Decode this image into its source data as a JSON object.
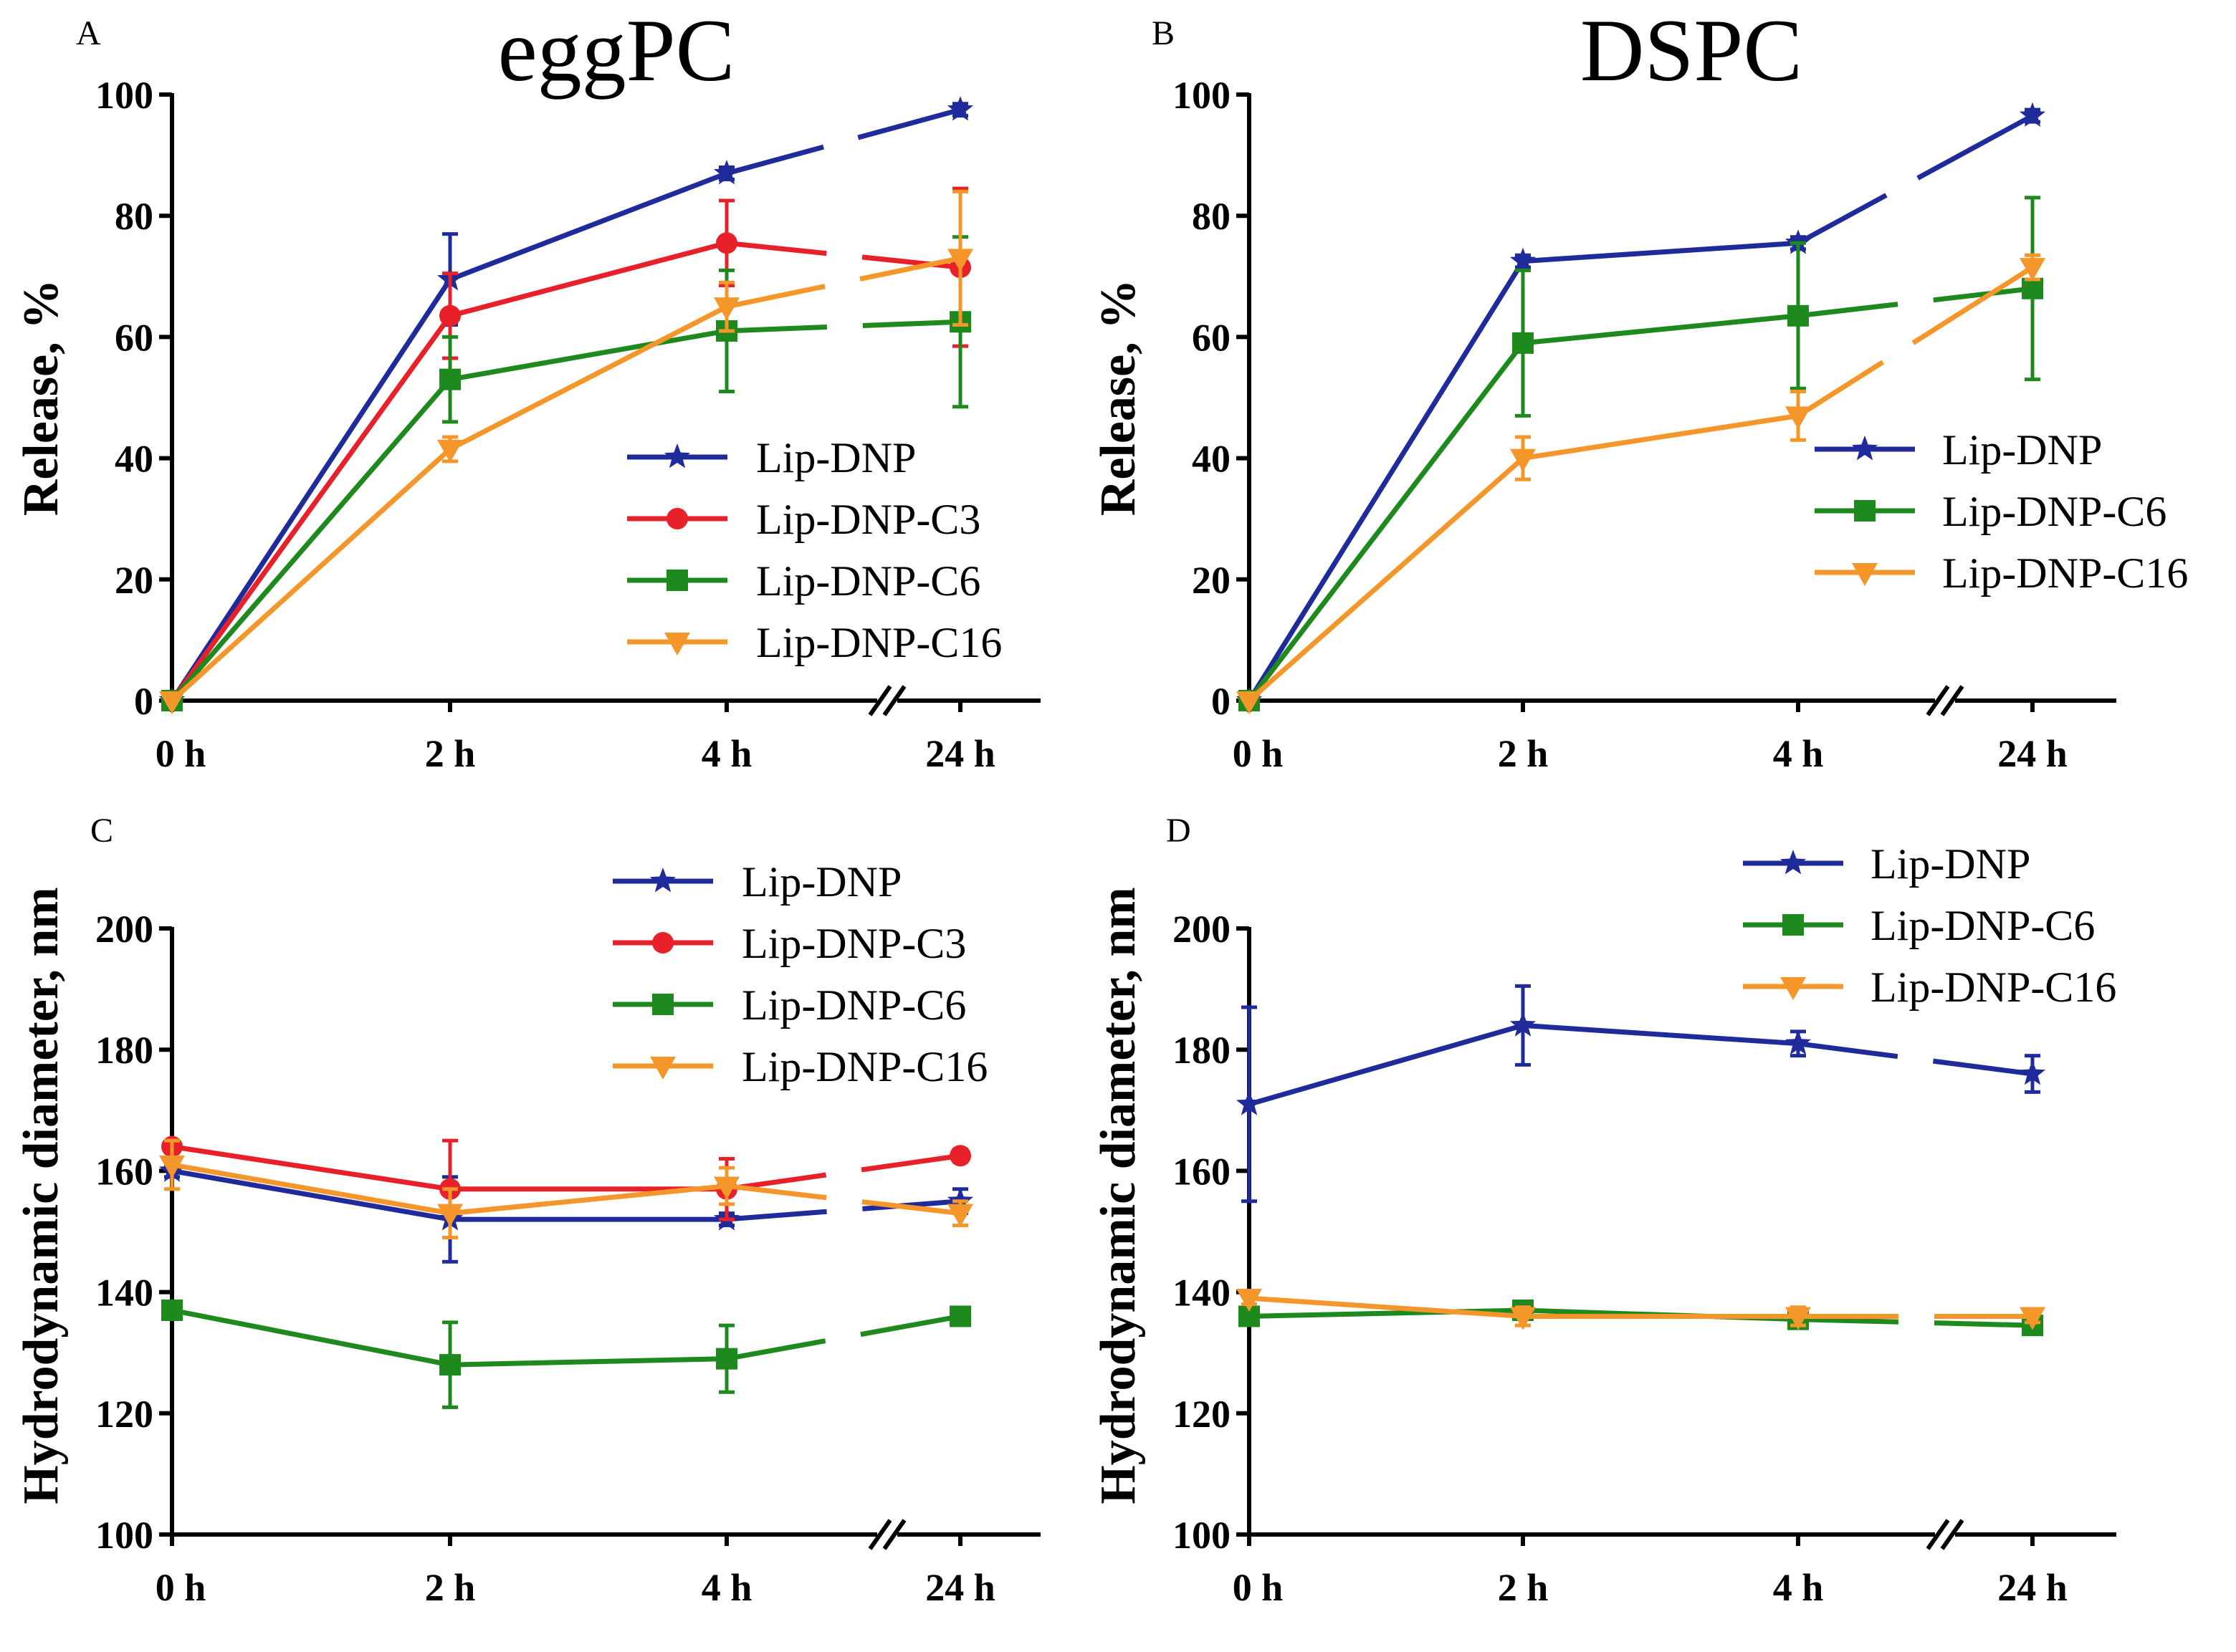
{
  "colors": {
    "Lip-DNP": "#1f2a9b",
    "Lip-DNP-C3": "#e8202a",
    "Lip-DNP-C6": "#1e8a1e",
    "Lip-DNP-C16": "#f5962a",
    "axis": "#000000",
    "background": "#ffffff"
  },
  "chart_data": [
    {
      "id": "A",
      "type": "line",
      "letter": "A",
      "title": "eggPC",
      "xlabel": "",
      "ylabel": "Release, %",
      "categories": [
        "0 h",
        "2 h",
        "4 h",
        "24 h"
      ],
      "axis_break": "between 4 h and 24 h",
      "ylim": [
        0,
        100
      ],
      "yticks": [
        0,
        20,
        40,
        60,
        80,
        100
      ],
      "legend_position": "lower-right",
      "series": [
        {
          "name": "Lip-DNP",
          "marker": "star",
          "values": [
            0,
            69.5,
            87,
            97.5
          ],
          "errors": [
            0,
            7.5,
            1,
            1
          ]
        },
        {
          "name": "Lip-DNP-C3",
          "marker": "circle",
          "values": [
            0,
            63.5,
            75.5,
            71.5
          ],
          "errors": [
            0,
            7,
            7,
            13
          ]
        },
        {
          "name": "Lip-DNP-C6",
          "marker": "square",
          "values": [
            0,
            53,
            61,
            62.5
          ],
          "errors": [
            0,
            7,
            10,
            14
          ]
        },
        {
          "name": "Lip-DNP-C16",
          "marker": "triangle-down",
          "values": [
            0,
            41.5,
            65,
            73
          ],
          "errors": [
            0,
            2,
            4,
            11
          ]
        }
      ]
    },
    {
      "id": "B",
      "type": "line",
      "letter": "B",
      "title": "DSPC",
      "xlabel": "",
      "ylabel": "Release, %",
      "categories": [
        "0 h",
        "2 h",
        "4 h",
        "24 h"
      ],
      "axis_break": "between 4 h and 24 h",
      "ylim": [
        0,
        100
      ],
      "yticks": [
        0,
        20,
        40,
        60,
        80,
        100
      ],
      "legend_position": "center-right",
      "series": [
        {
          "name": "Lip-DNP",
          "marker": "star",
          "values": [
            0,
            72.5,
            75.5,
            96.5
          ],
          "errors": [
            0,
            1,
            1,
            1
          ]
        },
        {
          "name": "Lip-DNP-C6",
          "marker": "square",
          "values": [
            0,
            59,
            63.5,
            68
          ],
          "errors": [
            0,
            12,
            12,
            15
          ]
        },
        {
          "name": "Lip-DNP-C16",
          "marker": "triangle-down",
          "values": [
            0,
            40,
            47,
            71.5
          ],
          "errors": [
            0,
            3.5,
            4,
            2
          ]
        }
      ]
    },
    {
      "id": "C",
      "type": "line",
      "letter": "C",
      "title": "",
      "xlabel": "",
      "ylabel": "Hydrodynamic diameter, nm",
      "categories": [
        "0 h",
        "2 h",
        "4 h",
        "24 h"
      ],
      "axis_break": "between 4 h and 24 h",
      "ylim": [
        100,
        200
      ],
      "yticks": [
        100,
        120,
        140,
        160,
        180,
        200
      ],
      "legend_position": "top-right",
      "series": [
        {
          "name": "Lip-DNP",
          "marker": "star",
          "values": [
            160,
            152,
            152,
            155
          ],
          "errors": [
            1,
            7,
            1,
            2
          ]
        },
        {
          "name": "Lip-DNP-C3",
          "marker": "circle",
          "values": [
            164,
            157,
            157,
            162.5
          ],
          "errors": [
            1,
            8,
            5,
            1
          ]
        },
        {
          "name": "Lip-DNP-C6",
          "marker": "square",
          "values": [
            137,
            128,
            129,
            136
          ],
          "errors": [
            1,
            7,
            5.5,
            1
          ]
        },
        {
          "name": "Lip-DNP-C16",
          "marker": "triangle-down",
          "values": [
            161,
            153,
            157.5,
            153
          ],
          "errors": [
            4,
            4,
            3,
            2
          ]
        }
      ]
    },
    {
      "id": "D",
      "type": "line",
      "letter": "D",
      "title": "",
      "xlabel": "",
      "ylabel": "Hydrodynamic diameter, nm",
      "categories": [
        "0 h",
        "2 h",
        "4 h",
        "24 h"
      ],
      "axis_break": "between 4 h and 24 h",
      "ylim": [
        100,
        200
      ],
      "yticks": [
        100,
        120,
        140,
        160,
        180,
        200
      ],
      "legend_position": "top-right",
      "series": [
        {
          "name": "Lip-DNP",
          "marker": "star",
          "values": [
            171,
            184,
            181,
            176
          ],
          "errors": [
            16,
            6.5,
            2,
            3
          ]
        },
        {
          "name": "Lip-DNP-C6",
          "marker": "square",
          "values": [
            136,
            137,
            135.5,
            134.5
          ],
          "errors": [
            1,
            1,
            1,
            1
          ]
        },
        {
          "name": "Lip-DNP-C16",
          "marker": "triangle-down",
          "values": [
            139,
            136,
            136,
            136
          ],
          "errors": [
            1,
            1.5,
            1.5,
            1
          ]
        }
      ]
    }
  ]
}
